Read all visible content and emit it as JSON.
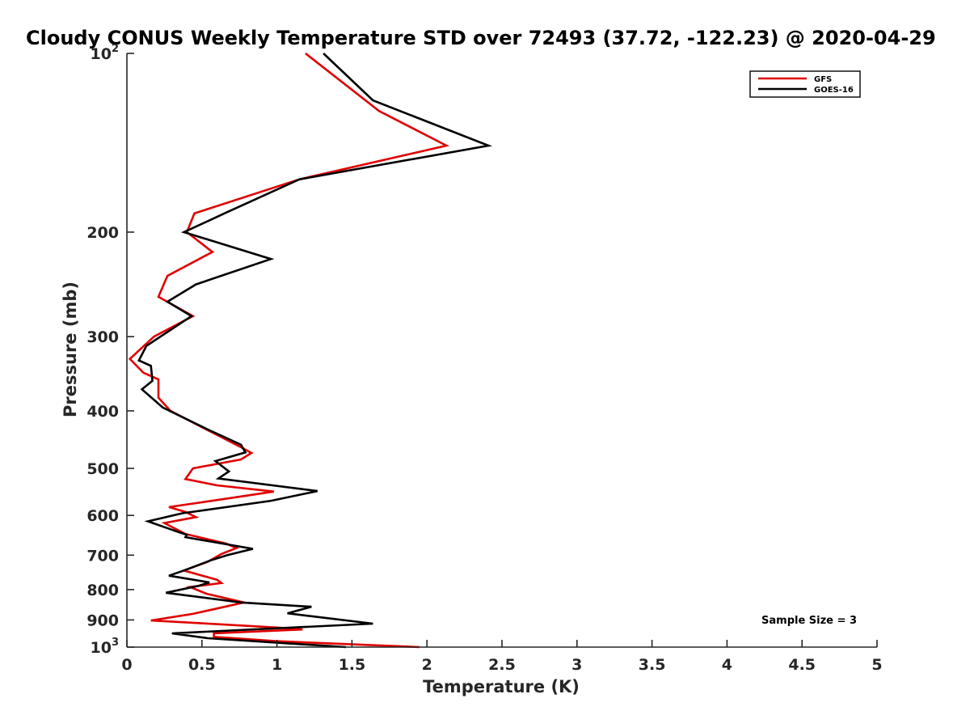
{
  "chart_data": {
    "type": "line",
    "title": "Cloudy CONUS Weekly Temperature STD over 72493 (37.72, -122.23) @ 2020-04-29",
    "xlabel": "Temperature (K)",
    "ylabel": "Pressure (mb)",
    "xlim": [
      0,
      5
    ],
    "ylim": [
      100,
      1000
    ],
    "y_scale": "log",
    "y_reversed": true,
    "x_ticks": [
      "0",
      "0.5",
      "1",
      "1.5",
      "2",
      "2.5",
      "3",
      "3.5",
      "4",
      "4.5",
      "5"
    ],
    "y_ticks": [
      {
        "value": 100,
        "base": "10",
        "exp": "2"
      },
      {
        "value": 200,
        "label": "200"
      },
      {
        "value": 300,
        "label": "300"
      },
      {
        "value": 400,
        "label": "400"
      },
      {
        "value": 500,
        "label": "500"
      },
      {
        "value": 600,
        "label": "600"
      },
      {
        "value": 700,
        "label": "700"
      },
      {
        "value": 800,
        "label": "800"
      },
      {
        "value": 900,
        "label": "900"
      },
      {
        "value": 1000,
        "base": "10",
        "exp": "3"
      }
    ],
    "grid": false,
    "legend_position": "top-right",
    "annotation": "Sample Size = 3",
    "series": [
      {
        "name": "GFS",
        "color": "#e00000",
        "points": [
          [
            1.19,
            100
          ],
          [
            1.68,
            125
          ],
          [
            2.13,
            143
          ],
          [
            1.15,
            163
          ],
          [
            0.45,
            186
          ],
          [
            0.4,
            200
          ],
          [
            0.57,
            216
          ],
          [
            0.27,
            237
          ],
          [
            0.21,
            257
          ],
          [
            0.44,
            277
          ],
          [
            0.18,
            300
          ],
          [
            0.02,
            327
          ],
          [
            0.11,
            345
          ],
          [
            0.21,
            354
          ],
          [
            0.21,
            380
          ],
          [
            0.29,
            400
          ],
          [
            0.53,
            430
          ],
          [
            0.75,
            459
          ],
          [
            0.83,
            471
          ],
          [
            0.76,
            483
          ],
          [
            0.44,
            500
          ],
          [
            0.39,
            521
          ],
          [
            0.6,
            534
          ],
          [
            0.98,
            547
          ],
          [
            0.71,
            560
          ],
          [
            0.28,
            581
          ],
          [
            0.39,
            592
          ],
          [
            0.46,
            604
          ],
          [
            0.25,
            618
          ],
          [
            0.39,
            645
          ],
          [
            0.66,
            669
          ],
          [
            0.73,
            681
          ],
          [
            0.63,
            697
          ],
          [
            0.54,
            718
          ],
          [
            0.38,
            743
          ],
          [
            0.6,
            770
          ],
          [
            0.63,
            780
          ],
          [
            0.42,
            792
          ],
          [
            0.53,
            813
          ],
          [
            0.78,
            841
          ],
          [
            0.44,
            879
          ],
          [
            0.16,
            902
          ],
          [
            0.61,
            915
          ],
          [
            1.0,
            927
          ],
          [
            1.17,
            934
          ],
          [
            0.58,
            948
          ],
          [
            0.58,
            961
          ],
          [
            0.99,
            977
          ],
          [
            1.95,
            1000
          ]
        ]
      },
      {
        "name": "GOES-16",
        "color": "#000000",
        "points": [
          [
            1.31,
            100
          ],
          [
            1.64,
            120
          ],
          [
            2.41,
            143
          ],
          [
            1.15,
            163
          ],
          [
            0.67,
            185
          ],
          [
            0.38,
            200
          ],
          [
            0.96,
            222
          ],
          [
            0.46,
            245
          ],
          [
            0.27,
            262
          ],
          [
            0.43,
            277
          ],
          [
            0.13,
            311
          ],
          [
            0.08,
            329
          ],
          [
            0.16,
            336
          ],
          [
            0.17,
            356
          ],
          [
            0.1,
            368
          ],
          [
            0.24,
            395
          ],
          [
            0.54,
            430
          ],
          [
            0.76,
            456
          ],
          [
            0.79,
            470
          ],
          [
            0.59,
            486
          ],
          [
            0.68,
            506
          ],
          [
            0.61,
            520
          ],
          [
            1.27,
            546
          ],
          [
            0.96,
            567
          ],
          [
            0.37,
            595
          ],
          [
            0.14,
            614
          ],
          [
            0.35,
            641
          ],
          [
            0.4,
            647
          ],
          [
            0.39,
            653
          ],
          [
            0.84,
            683
          ],
          [
            0.67,
            700
          ],
          [
            0.56,
            714
          ],
          [
            0.38,
            743
          ],
          [
            0.28,
            758
          ],
          [
            0.55,
            778
          ],
          [
            0.48,
            788
          ],
          [
            0.26,
            810
          ],
          [
            0.76,
            841
          ],
          [
            1.23,
            855
          ],
          [
            1.07,
            877
          ],
          [
            1.64,
            913
          ],
          [
            0.3,
            948
          ],
          [
            0.54,
            966
          ],
          [
            1.46,
            1000
          ]
        ]
      }
    ]
  }
}
